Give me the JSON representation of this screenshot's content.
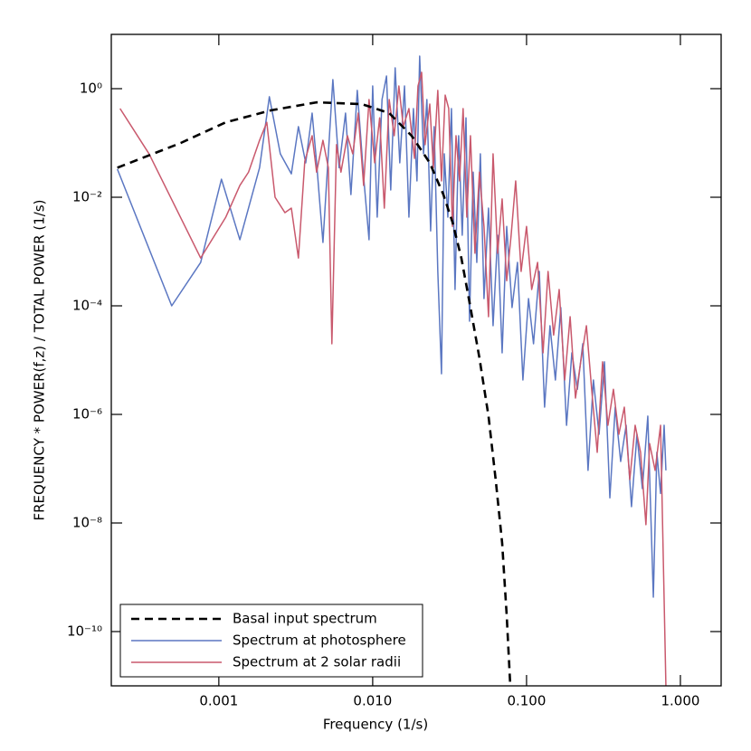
{
  "chart_data": {
    "type": "line",
    "x_label": "Frequency (1/s)",
    "y_label": "FREQUENCY * POWER(f,z) / TOTAL POWER (1/s)",
    "log_x": true,
    "log_y": true,
    "xlim": [
      0.0002,
      1.84
    ],
    "ylim": [
      1e-11,
      10
    ],
    "xticks": [
      {
        "value": 0.001,
        "label": "0.001"
      },
      {
        "value": 0.01,
        "label": "0.010"
      },
      {
        "value": 0.1,
        "label": "0.100"
      },
      {
        "value": 1,
        "label": "1.000"
      }
    ],
    "yticks": [
      {
        "value": 1,
        "label": "10⁰"
      },
      {
        "value": 0.01,
        "label": "10⁻²"
      },
      {
        "value": 0.0001,
        "label": "10⁻⁴"
      },
      {
        "value": 1e-06,
        "label": "10⁻⁶"
      },
      {
        "value": 1e-08,
        "label": "10⁻⁸"
      },
      {
        "value": 1e-10,
        "label": "10⁻¹⁰"
      }
    ],
    "legend": "lower left",
    "series": [
      {
        "name": "Basal input spectrum",
        "color": "#000000",
        "dashed": true,
        "x": [
          0.000219,
          0.000566,
          0.00111,
          0.00219,
          0.00432,
          0.0085,
          0.0128,
          0.0179,
          0.0235,
          0.0288,
          0.033,
          0.0377,
          0.0432,
          0.0494,
          0.0566,
          0.063,
          0.0694,
          0.0743,
          0.0784
        ],
        "values": [
          0.035,
          0.1,
          0.24,
          0.4,
          0.56,
          0.52,
          0.355,
          0.136,
          0.043,
          0.0112,
          0.0035,
          0.00076,
          9.3e-05,
          1.1e-05,
          9.3e-07,
          6.3e-08,
          4.3e-09,
          2e-10,
          1e-11
        ]
      },
      {
        "name": "Spectrum at photosphere",
        "color": "#5b77c2",
        "dashed": false,
        "x": [
          0.000219,
          0.000494,
          0.000762,
          0.00104,
          0.00137,
          0.00184,
          0.00213,
          0.00251,
          0.00296,
          0.00329,
          0.00367,
          0.00404,
          0.00432,
          0.00475,
          0.00551,
          0.00605,
          0.00666,
          0.00722,
          0.00794,
          0.00873,
          0.00947,
          0.01,
          0.0107,
          0.0115,
          0.0123,
          0.0131,
          0.014,
          0.015,
          0.0161,
          0.0172,
          0.0184,
          0.0194,
          0.0202,
          0.0214,
          0.0225,
          0.0238,
          0.0251,
          0.0265,
          0.028,
          0.0292,
          0.0308,
          0.0325,
          0.0343,
          0.0362,
          0.0382,
          0.0404,
          0.0426,
          0.045,
          0.0475,
          0.0501,
          0.0529,
          0.0566,
          0.0606,
          0.0649,
          0.0694,
          0.0743,
          0.0805,
          0.0873,
          0.0947,
          0.103,
          0.111,
          0.121,
          0.131,
          0.142,
          0.154,
          0.167,
          0.182,
          0.197,
          0.214,
          0.232,
          0.251,
          0.272,
          0.296,
          0.321,
          0.348,
          0.377,
          0.409,
          0.444,
          0.481,
          0.522,
          0.566,
          0.614,
          0.667,
          0.703,
          0.743,
          0.784,
          0.805
        ],
        "values": [
          0.033,
          0.0001,
          0.00063,
          0.0215,
          0.00165,
          0.035,
          0.71,
          0.063,
          0.027,
          0.2,
          0.043,
          0.355,
          0.043,
          0.00147,
          1.47,
          0.035,
          0.355,
          0.0112,
          0.93,
          0.024,
          0.00165,
          1.12,
          0.0043,
          0.63,
          1.71,
          0.0136,
          2.42,
          0.043,
          1.12,
          0.0043,
          0.43,
          0.02,
          3.98,
          0.063,
          0.63,
          0.0024,
          0.2,
          0.00043,
          5.6e-06,
          0.063,
          0.0043,
          0.43,
          0.0002,
          0.136,
          0.002,
          0.29,
          5.2e-05,
          0.029,
          0.00063,
          0.063,
          0.000136,
          0.0063,
          4.3e-05,
          0.002,
          1.36e-05,
          0.0029,
          9.3e-05,
          0.00063,
          4.3e-06,
          0.000136,
          2e-05,
          0.00043,
          1.36e-06,
          4.3e-05,
          4.3e-06,
          9.3e-05,
          6.3e-07,
          1.36e-05,
          2.9e-06,
          2e-05,
          9.3e-08,
          4.3e-06,
          4.3e-07,
          9.3e-06,
          2.9e-08,
          1.36e-06,
          1.36e-07,
          6.3e-07,
          2e-08,
          4.3e-07,
          4.3e-08,
          9.3e-07,
          4.3e-10,
          2e-07,
          3.5e-08,
          6.3e-07,
          9.3e-08
        ]
      },
      {
        "name": "Spectrum at 2 solar radii",
        "color": "#c9596d",
        "dashed": false,
        "x": [
          0.000228,
          0.000352,
          0.000762,
          0.00111,
          0.00137,
          0.00156,
          0.00184,
          0.00205,
          0.00232,
          0.00269,
          0.00296,
          0.00329,
          0.00362,
          0.00404,
          0.00432,
          0.00475,
          0.00515,
          0.00543,
          0.00582,
          0.00622,
          0.00685,
          0.00742,
          0.00805,
          0.00873,
          0.00947,
          0.0103,
          0.0111,
          0.0119,
          0.0128,
          0.0138,
          0.0148,
          0.0158,
          0.0172,
          0.0187,
          0.0197,
          0.0208,
          0.0219,
          0.0235,
          0.0248,
          0.0265,
          0.028,
          0.0296,
          0.0312,
          0.033,
          0.0348,
          0.0367,
          0.0387,
          0.0409,
          0.0432,
          0.0462,
          0.0494,
          0.0529,
          0.0566,
          0.0606,
          0.0649,
          0.0694,
          0.0743,
          0.0794,
          0.085,
          0.0922,
          0.1,
          0.108,
          0.118,
          0.128,
          0.138,
          0.15,
          0.163,
          0.177,
          0.192,
          0.208,
          0.225,
          0.245,
          0.265,
          0.288,
          0.312,
          0.338,
          0.367,
          0.398,
          0.432,
          0.469,
          0.508,
          0.551,
          0.597,
          0.631,
          0.685,
          0.743,
          0.805
        ],
        "values": [
          0.43,
          0.063,
          0.00076,
          0.0043,
          0.0165,
          0.029,
          0.112,
          0.24,
          0.01,
          0.0052,
          0.0063,
          0.00076,
          0.046,
          0.136,
          0.029,
          0.112,
          0.035,
          2e-05,
          0.093,
          0.029,
          0.136,
          0.063,
          0.355,
          0.0165,
          0.63,
          0.043,
          0.29,
          0.0063,
          0.63,
          0.136,
          1.12,
          0.2,
          0.43,
          0.052,
          1.12,
          2.0,
          0.093,
          0.52,
          0.035,
          0.93,
          0.02,
          0.76,
          0.43,
          0.0029,
          0.136,
          0.02,
          0.43,
          0.0043,
          0.136,
          0.00093,
          0.029,
          0.0029,
          6.3e-05,
          0.063,
          0.00093,
          0.0093,
          0.00029,
          0.002,
          0.02,
          0.00043,
          0.0029,
          0.0002,
          0.00063,
          1.36e-05,
          0.00043,
          2.9e-05,
          0.0002,
          4.3e-06,
          6.3e-05,
          2e-06,
          9.3e-06,
          4.3e-05,
          2.9e-06,
          2e-07,
          9.3e-06,
          6.3e-07,
          2.9e-06,
          4.3e-07,
          1.36e-06,
          6.3e-08,
          6.3e-07,
          2e-07,
          9.3e-09,
          2.9e-07,
          9.3e-08,
          6.3e-07,
          1e-11
        ]
      }
    ]
  }
}
